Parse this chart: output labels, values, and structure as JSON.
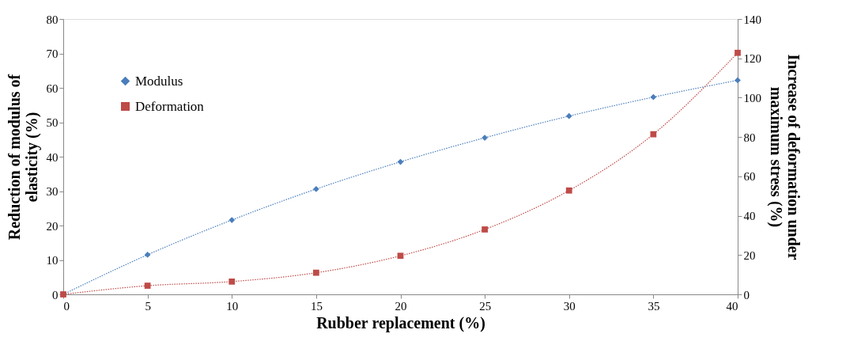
{
  "chart_data": {
    "type": "line",
    "xlabel": "Rubber replacement (%)",
    "ylabel": "Reduction of modulus of\nelasticity (%)",
    "y2label": "Increase  of deformation under\nmaximum stress (%)",
    "x": [
      0,
      5,
      10,
      15,
      20,
      25,
      30,
      35,
      40
    ],
    "series": [
      {
        "name": "Modulus",
        "color": "#4a7ebb",
        "marker": "diamond",
        "values": [
          0,
          11.5,
          21.6,
          30.6,
          38.5,
          45.5,
          51.8,
          57.3,
          62.2
        ]
      },
      {
        "name": "Deformation",
        "color": "#be4b48",
        "marker": "square",
        "axis": "y2",
        "values": [
          0,
          4.4,
          6.5,
          11,
          19.6,
          33,
          52.8,
          81.4,
          122.8
        ]
      }
    ],
    "xlim": [
      0,
      40
    ],
    "xticks": [
      0,
      5,
      10,
      15,
      20,
      25,
      30,
      35,
      40
    ],
    "ylim": [
      0,
      80
    ],
    "yticks": [
      0,
      10,
      20,
      30,
      40,
      50,
      60,
      70,
      80
    ],
    "y2lim": [
      0,
      140
    ],
    "y2ticks": [
      0,
      20,
      40,
      60,
      80,
      100,
      120,
      140
    ],
    "line_style": "dotted",
    "grid": false,
    "legend": "top left"
  }
}
